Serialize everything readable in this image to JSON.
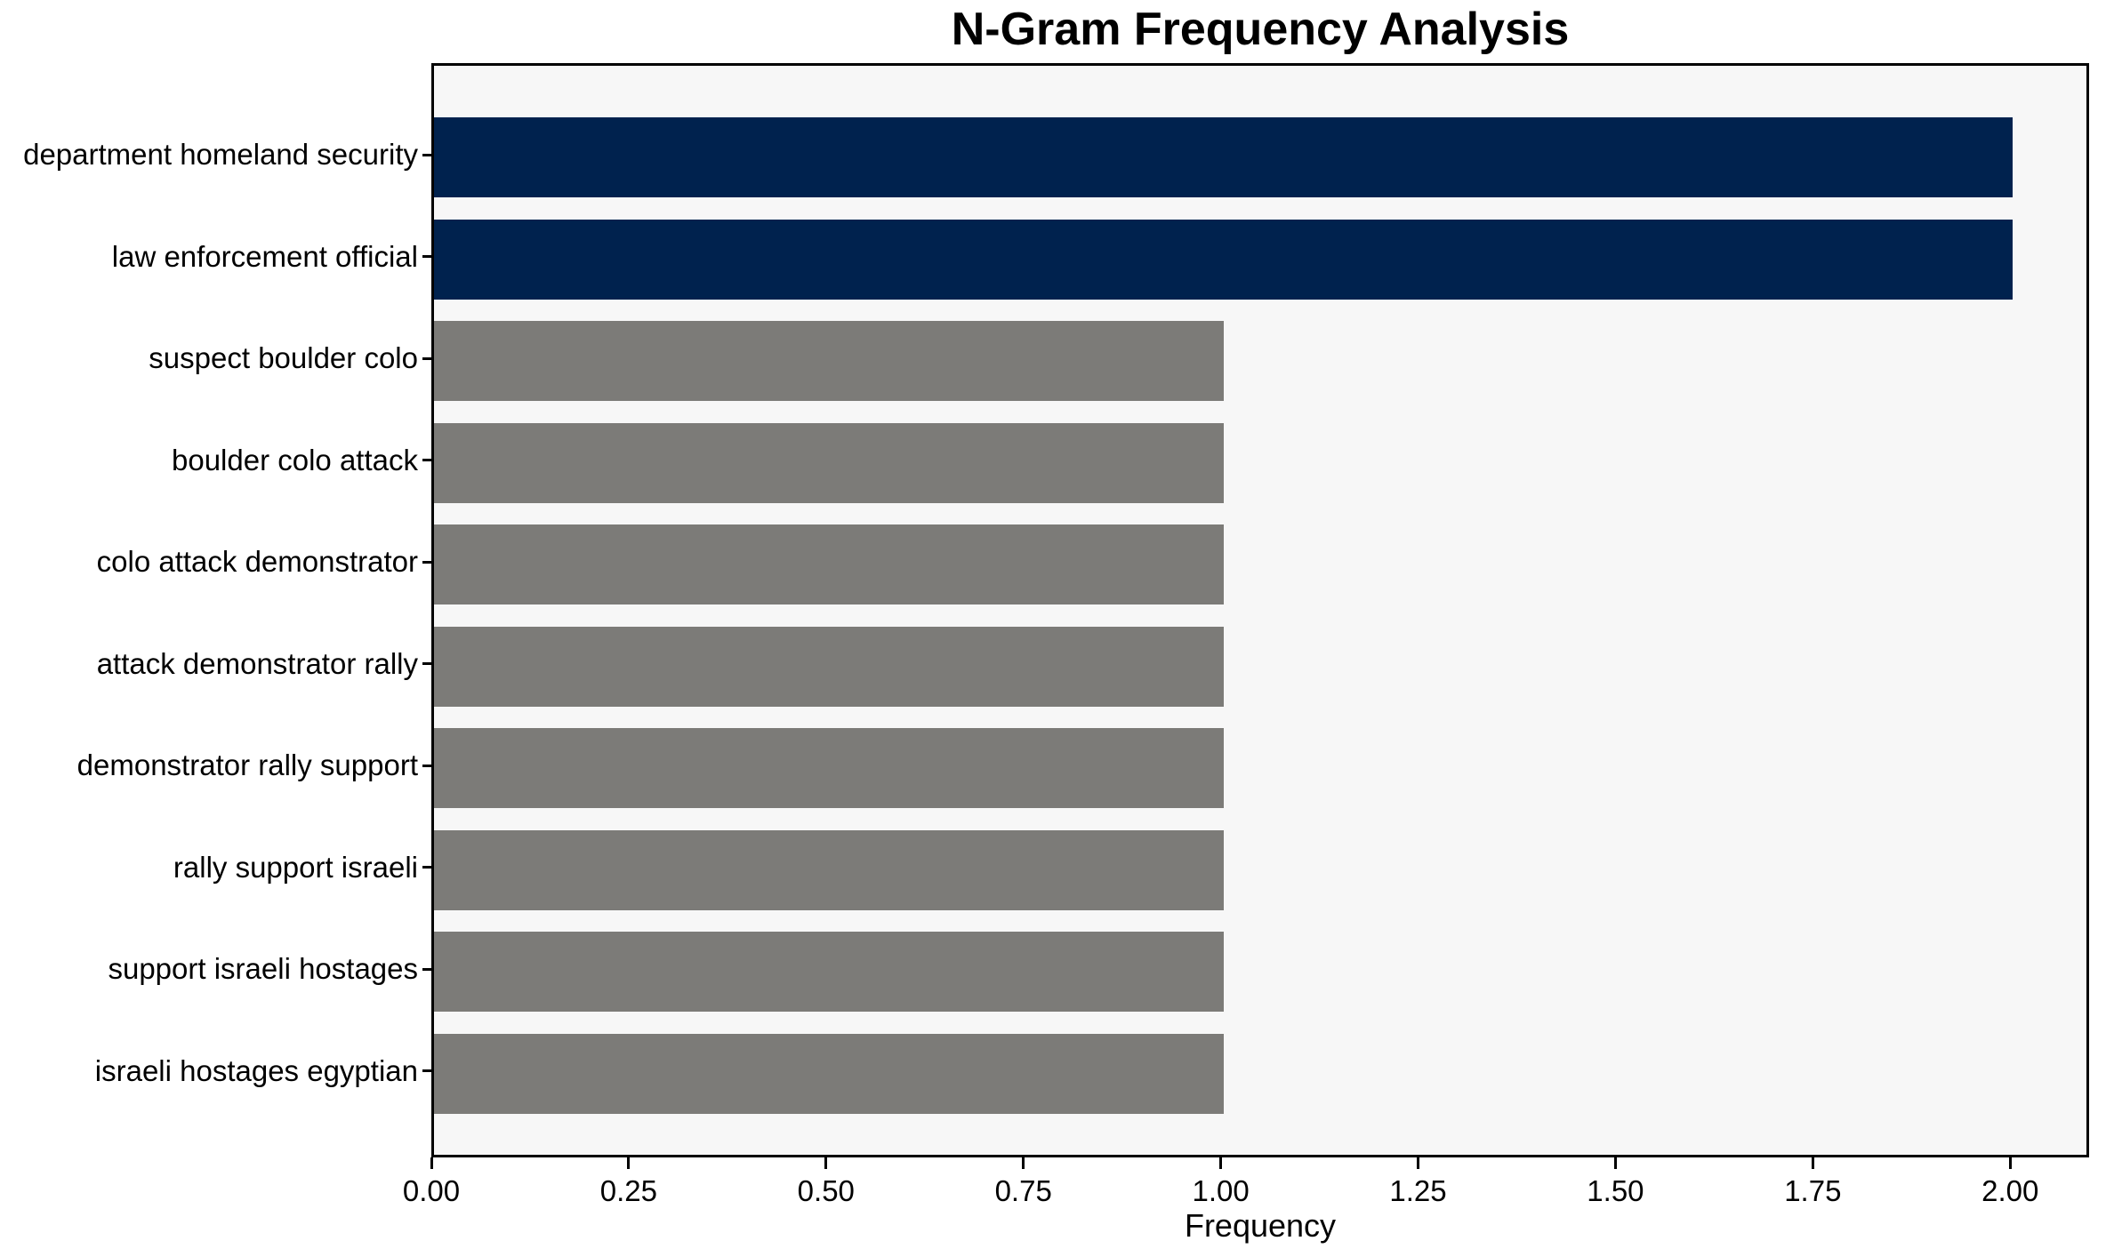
{
  "chart_data": {
    "type": "bar",
    "orientation": "horizontal",
    "title": "N-Gram Frequency Analysis",
    "xlabel": "Frequency",
    "ylabel": "",
    "categories": [
      "department homeland security",
      "law enforcement official",
      "suspect boulder colo",
      "boulder colo attack",
      "colo attack demonstrator",
      "attack demonstrator rally",
      "demonstrator rally support",
      "rally support israeli",
      "support israeli hostages",
      "israeli hostages egyptian"
    ],
    "values": [
      2,
      2,
      1,
      1,
      1,
      1,
      1,
      1,
      1,
      1
    ],
    "bar_colors": [
      "#00224e",
      "#00224e",
      "#7c7b78",
      "#7c7b78",
      "#7c7b78",
      "#7c7b78",
      "#7c7b78",
      "#7c7b78",
      "#7c7b78",
      "#7c7b78"
    ],
    "xlim": [
      0,
      2.1
    ],
    "xticks": [
      {
        "value": 0.0,
        "label": "0.00"
      },
      {
        "value": 0.25,
        "label": "0.25"
      },
      {
        "value": 0.5,
        "label": "0.50"
      },
      {
        "value": 0.75,
        "label": "0.75"
      },
      {
        "value": 1.0,
        "label": "1.00"
      },
      {
        "value": 1.25,
        "label": "1.25"
      },
      {
        "value": 1.5,
        "label": "1.50"
      },
      {
        "value": 1.75,
        "label": "1.75"
      },
      {
        "value": 2.0,
        "label": "2.00"
      }
    ],
    "grid": false,
    "legend_position": "none",
    "colors": {
      "plot_background": "#f7f7f7",
      "figure_background": "#ffffff",
      "spine": "#000000",
      "text": "#000000"
    }
  }
}
